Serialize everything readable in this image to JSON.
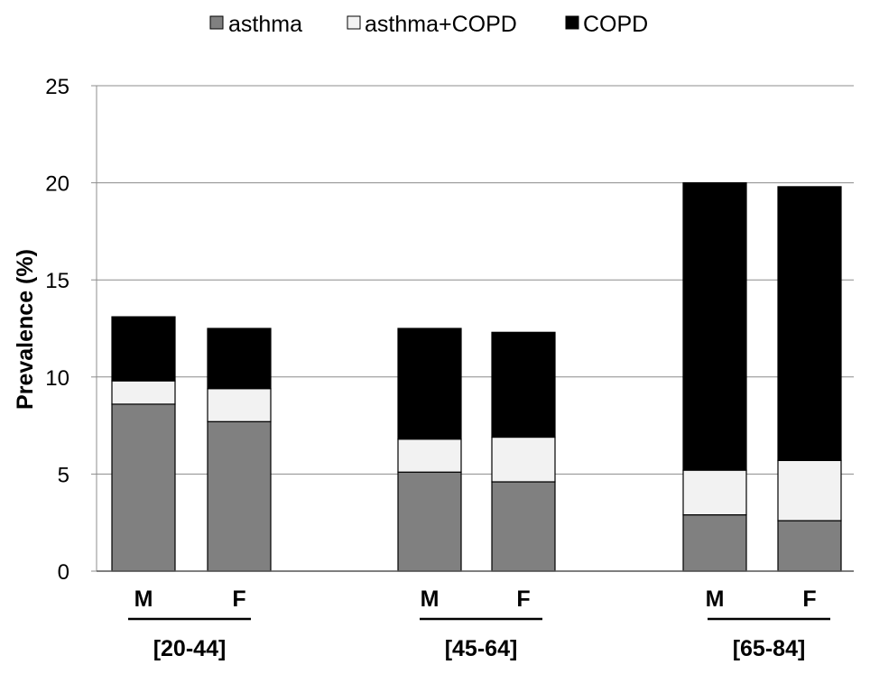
{
  "chart_data": {
    "type": "bar",
    "stacked": true,
    "title": "",
    "ylabel": "Prevalence (%)",
    "xlabel": "",
    "ylim": [
      0,
      25
    ],
    "yticks": [
      0,
      5,
      10,
      15,
      20,
      25
    ],
    "grid": true,
    "legend_position": "top",
    "groups": [
      "[20-44]",
      "[45-64]",
      "[65-84]"
    ],
    "categories": [
      "M",
      "F",
      "M",
      "F",
      "M",
      "F"
    ],
    "series": [
      {
        "name": "asthma",
        "color": "#808080",
        "values": [
          8.6,
          7.7,
          5.1,
          4.6,
          2.9,
          2.6
        ]
      },
      {
        "name": "asthma+COPD",
        "color": "#f2f2f2",
        "values": [
          1.2,
          1.7,
          1.7,
          2.3,
          2.3,
          3.1
        ]
      },
      {
        "name": "COPD",
        "color": "#000000",
        "values": [
          3.3,
          3.1,
          5.7,
          5.4,
          14.8,
          14.1
        ]
      }
    ]
  }
}
